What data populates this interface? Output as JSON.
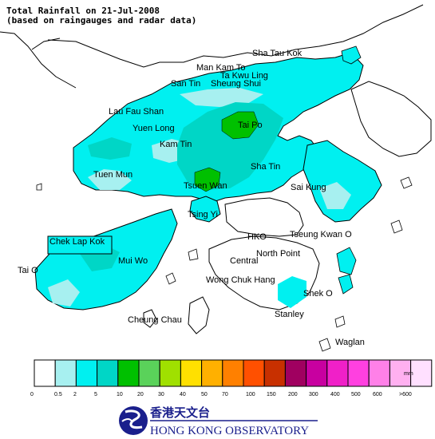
{
  "title": {
    "line1": "Total Rainfall on 21-Jul-2008",
    "line2": "(based on raingauges and radar data)"
  },
  "places": [
    {
      "key": "sha-tau-kok",
      "name": "Sha Tau Kok"
    },
    {
      "key": "man-kam-to",
      "name": "Man Kam To"
    },
    {
      "key": "ta-kwu-ling",
      "name": "Ta Kwu Ling"
    },
    {
      "key": "san-tin",
      "name": "San Tin"
    },
    {
      "key": "sheung-shui",
      "name": "Sheung Shui"
    },
    {
      "key": "lau-fau-shan",
      "name": "Lau Fau Shan"
    },
    {
      "key": "tai-po",
      "name": "Tai Po"
    },
    {
      "key": "yuen-long",
      "name": "Yuen Long"
    },
    {
      "key": "kam-tin",
      "name": "Kam Tin"
    },
    {
      "key": "sha-tin",
      "name": "Sha Tin"
    },
    {
      "key": "tuen-mun",
      "name": "Tuen Mun"
    },
    {
      "key": "tsuen-wan",
      "name": "Tsuen Wan"
    },
    {
      "key": "sai-kung",
      "name": "Sai Kung"
    },
    {
      "key": "tsing-yi",
      "name": "Tsing Yi"
    },
    {
      "key": "chek-lap-kok",
      "name": "Chek Lap Kok"
    },
    {
      "key": "hko",
      "name": "HKO"
    },
    {
      "key": "tseung-kwan-o",
      "name": "Tseung Kwan O"
    },
    {
      "key": "tai-o",
      "name": "Tai O"
    },
    {
      "key": "mui-wo",
      "name": "Mui Wo"
    },
    {
      "key": "north-point",
      "name": "North Point"
    },
    {
      "key": "central",
      "name": "Central"
    },
    {
      "key": "wong-chuk-hang",
      "name": "Wong Chuk Hang"
    },
    {
      "key": "shek-o",
      "name": "Shek O"
    },
    {
      "key": "cheung-chau",
      "name": "Cheung Chau"
    },
    {
      "key": "stanley",
      "name": "Stanley"
    },
    {
      "key": "waglan",
      "name": "Waglan"
    }
  ],
  "legend": {
    "unit": "mm",
    "bins": [
      {
        "color": "#ffffff"
      },
      {
        "color": "#a7f0f0"
      },
      {
        "color": "#00f0f0"
      },
      {
        "color": "#00d6c6"
      },
      {
        "color": "#00c000"
      },
      {
        "color": "#5ad25a"
      },
      {
        "color": "#a0e000"
      },
      {
        "color": "#ffe000"
      },
      {
        "color": "#ffb000"
      },
      {
        "color": "#ff8000"
      },
      {
        "color": "#ff5000"
      },
      {
        "color": "#c83000"
      },
      {
        "color": "#a00060"
      },
      {
        "color": "#c800a0"
      },
      {
        "color": "#f020c8"
      },
      {
        "color": "#ff40e0"
      },
      {
        "color": "#ff80e8"
      },
      {
        "color": "#ffb0f0"
      },
      {
        "color": "#ffe0ff"
      }
    ],
    "thresholds": [
      "0",
      "0.5",
      "2",
      "5",
      "10",
      "20",
      "30",
      "40",
      "50",
      "70",
      "100",
      "150",
      "200",
      "300",
      "400",
      "500",
      "600",
      ">600"
    ]
  },
  "logo": {
    "name_zh": "香港天文台",
    "name_en": "HONG KONG OBSERVATORY"
  },
  "colors": {
    "land_outline": "#000000",
    "sea": "#ffffff",
    "logo_blue": "#1a1f8c"
  }
}
